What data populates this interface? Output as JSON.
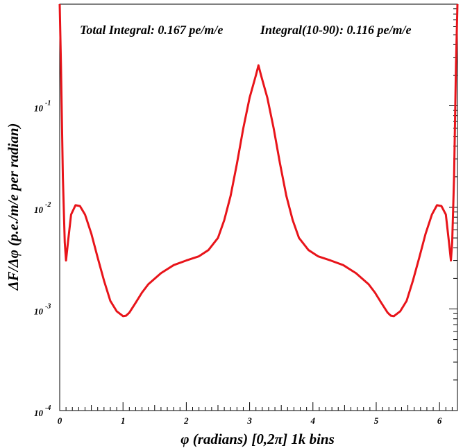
{
  "chart_data": {
    "type": "line",
    "title": "",
    "annotations": [
      "Total Integral: 0.167 pe/m/e",
      "Integral(10-90): 0.116 pe/m/e"
    ],
    "xlabel": "φ (radians) [0,2π] 1k bins",
    "ylabel": "ΔF/Δφ (p.e./m/e per radian)",
    "xlim": [
      0,
      6.2832
    ],
    "ylim": [
      0.0001,
      1
    ],
    "yscale": "log",
    "grid": false,
    "x_ticks": [
      "0",
      "1",
      "2",
      "3",
      "4",
      "5",
      "6"
    ],
    "y_ticks": [
      {
        "base": "10",
        "exp": "-1",
        "value": 0.1
      },
      {
        "base": "10",
        "exp": "-2",
        "value": 0.01
      },
      {
        "base": "10",
        "exp": "-3",
        "value": 0.001
      },
      {
        "base": "10",
        "exp": "-4",
        "value": 0.0001
      }
    ],
    "line_color": "#e8141a",
    "series": [
      {
        "x": [
          0.0,
          0.02,
          0.05,
          0.08,
          0.1,
          0.13,
          0.18,
          0.25,
          0.32,
          0.4,
          0.5,
          0.6,
          0.7,
          0.8,
          0.9,
          1.0,
          1.05,
          1.1,
          1.2,
          1.3,
          1.4,
          1.6,
          1.8,
          2.0,
          2.2,
          2.35,
          2.5,
          2.6,
          2.7,
          2.8,
          2.9,
          3.0,
          3.1,
          3.14,
          3.18,
          3.28,
          3.38,
          3.48,
          3.58,
          3.68,
          3.78,
          3.93,
          4.08,
          4.28,
          4.48,
          4.68,
          4.88,
          4.98,
          5.08,
          5.18,
          5.23,
          5.28,
          5.38,
          5.48,
          5.58,
          5.68,
          5.78,
          5.88,
          5.96,
          6.03,
          6.1,
          6.15,
          6.18,
          6.2,
          6.23,
          6.26,
          6.2832
        ],
        "y": [
          1.0,
          0.25,
          0.02,
          0.0045,
          0.003,
          0.0045,
          0.0085,
          0.0105,
          0.0103,
          0.0085,
          0.0055,
          0.0032,
          0.0019,
          0.0012,
          0.00095,
          0.00085,
          0.00086,
          0.00092,
          0.00115,
          0.00145,
          0.00175,
          0.00225,
          0.0027,
          0.003,
          0.0033,
          0.0038,
          0.005,
          0.0075,
          0.013,
          0.027,
          0.06,
          0.12,
          0.2,
          0.25,
          0.2,
          0.12,
          0.06,
          0.027,
          0.013,
          0.0075,
          0.005,
          0.0038,
          0.0033,
          0.003,
          0.0027,
          0.00225,
          0.00175,
          0.00145,
          0.00115,
          0.00092,
          0.00086,
          0.00085,
          0.00095,
          0.0012,
          0.0019,
          0.0032,
          0.0055,
          0.0085,
          0.0105,
          0.0103,
          0.0085,
          0.0045,
          0.003,
          0.0045,
          0.02,
          0.25,
          1.0
        ]
      }
    ]
  }
}
